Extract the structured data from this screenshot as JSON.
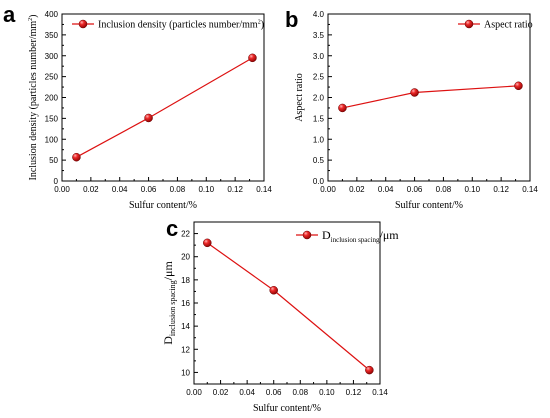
{
  "chart_data": [
    {
      "panel": "a",
      "type": "line",
      "xlabel": "Sulfur content/%",
      "ylabel": "Inclusion density (particles number/mm",
      "ylabel_sup": "2",
      "ylabel_close": ")",
      "xlim": [
        0,
        0.14
      ],
      "ylim": [
        0,
        400
      ],
      "xticks": [
        "0.00",
        "0.02",
        "0.04",
        "0.06",
        "0.08",
        "0.10",
        "0.12",
        "0.14"
      ],
      "yticks": [
        "0",
        "50",
        "100",
        "150",
        "200",
        "250",
        "300",
        "350",
        "400"
      ],
      "legend_position": "top-left",
      "series": [
        {
          "name": "Inclusion density (particles number/mm",
          "name_sup": "2",
          "name_close": ")",
          "x": [
            0.01,
            0.06,
            0.132
          ],
          "y": [
            57,
            151,
            295
          ]
        }
      ],
      "color": "#dd1111"
    },
    {
      "panel": "b",
      "type": "line",
      "xlabel": "Sulfur content/%",
      "ylabel": "Aspect ratio",
      "xlim": [
        0,
        0.14
      ],
      "ylim": [
        0,
        4.0
      ],
      "xticks": [
        "0.00",
        "0.02",
        "0.04",
        "0.06",
        "0.08",
        "0.10",
        "0.12",
        "0.14"
      ],
      "yticks": [
        "0.0",
        "0.5",
        "1.0",
        "1.5",
        "2.0",
        "2.5",
        "3.0",
        "3.5",
        "4.0"
      ],
      "legend_position": "top-right",
      "series": [
        {
          "name": "Aspect ratio",
          "x": [
            0.01,
            0.06,
            0.132
          ],
          "y": [
            1.75,
            2.12,
            2.28
          ]
        }
      ],
      "color": "#dd1111"
    },
    {
      "panel": "c",
      "type": "line",
      "xlabel": "Sulfur content/%",
      "ylabel_main": "D",
      "ylabel_sub": "inclusion spacing",
      "ylabel_unit": "/μm",
      "xlim": [
        0,
        0.14
      ],
      "ylim": [
        9,
        23
      ],
      "xticks": [
        "0.00",
        "0.02",
        "0.04",
        "0.06",
        "0.08",
        "0.10",
        "0.12",
        "0.14"
      ],
      "yticks": [
        "10",
        "12",
        "14",
        "16",
        "18",
        "20",
        "22"
      ],
      "ytick_values": [
        10,
        12,
        14,
        16,
        18,
        20,
        22
      ],
      "legend_position": "top-right",
      "series": [
        {
          "name_main": "D",
          "name_sub": "inclusion spacing",
          "name_unit": "/μm",
          "x": [
            0.01,
            0.06,
            0.132
          ],
          "y": [
            21.2,
            17.1,
            10.2
          ]
        }
      ],
      "color": "#dd1111"
    }
  ]
}
